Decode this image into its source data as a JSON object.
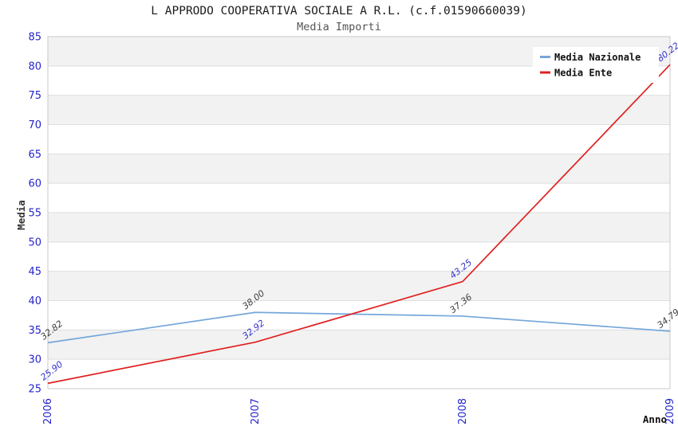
{
  "chart_data": {
    "type": "line",
    "title": "L APPRODO COOPERATIVA SOCIALE A R.L. (c.f.01590660039)",
    "subtitle": "Media Importi",
    "xlabel": "Anno",
    "ylabel": "Media",
    "categories": [
      "2006",
      "2007",
      "2008",
      "2009"
    ],
    "series": [
      {
        "name": "Media Nazionale",
        "color": "#75a7db",
        "label_color": "#3d3d3d",
        "values": [
          32.82,
          38.0,
          37.36,
          34.79
        ],
        "labels": [
          "32.82",
          "38.00",
          "37.36",
          "34.79"
        ]
      },
      {
        "name": "Media Ente",
        "color": "#e02020",
        "label_color": "#3333cc",
        "values": [
          25.9,
          32.92,
          43.25,
          80.22
        ],
        "labels": [
          "25.90",
          "32.92",
          "43.25",
          "80.22"
        ]
      }
    ],
    "ylim": [
      25,
      85
    ],
    "ytick_step": 5,
    "yticks": [
      85,
      80,
      75,
      70,
      65,
      60,
      55,
      50,
      45,
      40,
      35,
      30,
      25
    ],
    "grid": "horizontal-bands-alternating",
    "legend_position": "top-right",
    "colors": {
      "tick_label": "#2525cc",
      "band": "#f2f2f2",
      "grid_line": "#dedede",
      "plot_border": "#c9c9c9",
      "legend_bg": "#ffffff",
      "legend_text": "#111111",
      "title": "#1c1c1c",
      "subtitle": "#555555",
      "axis_label": "#333333"
    }
  }
}
